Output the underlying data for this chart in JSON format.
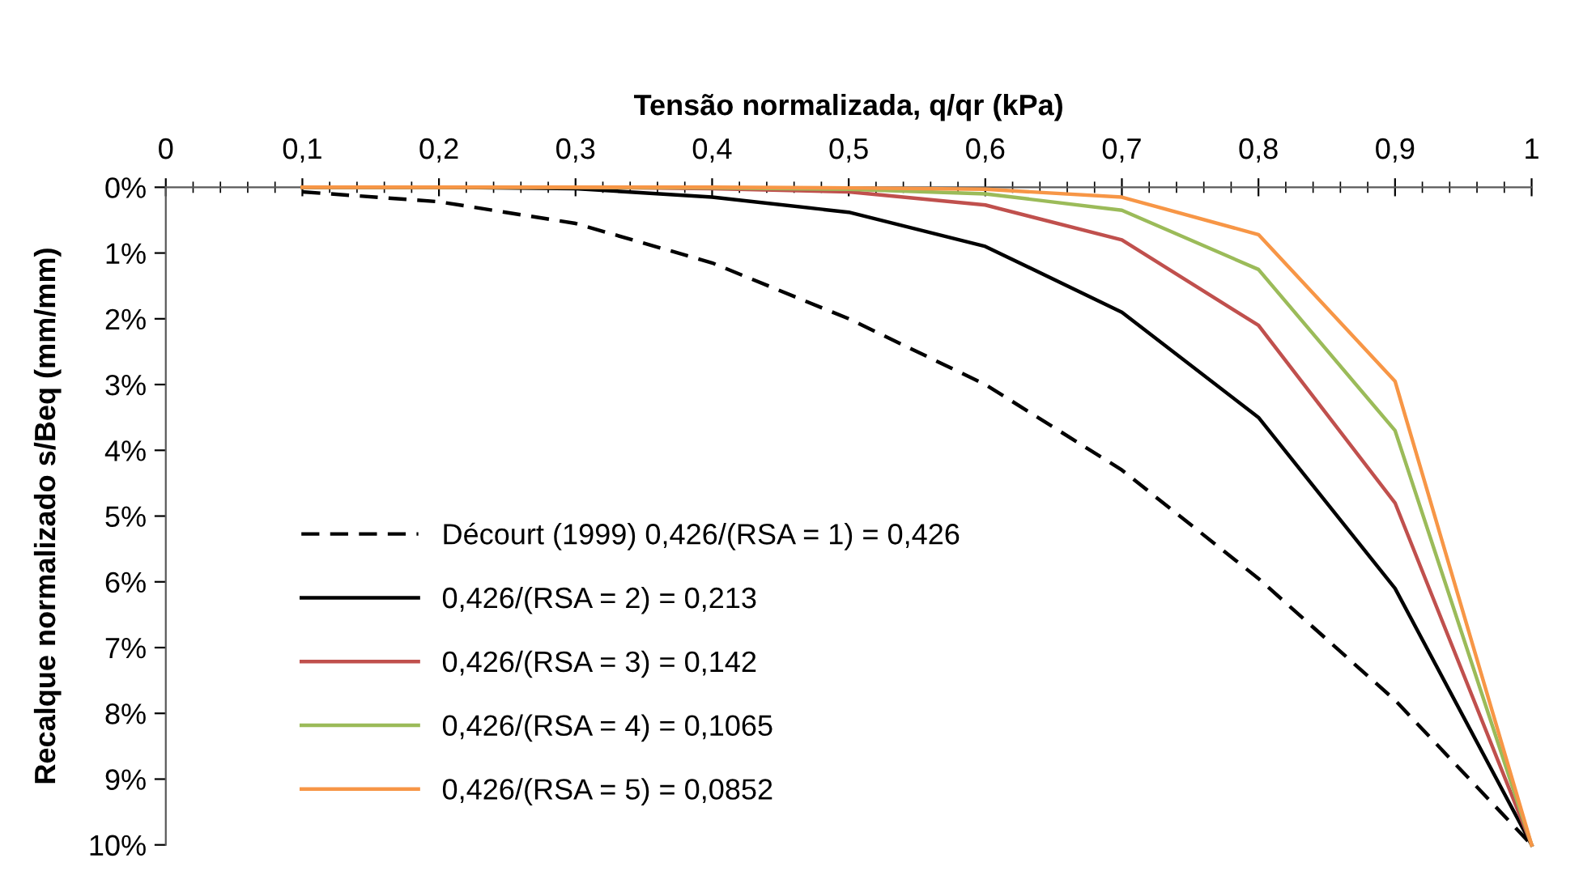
{
  "chart_data": {
    "type": "line",
    "xlabel": "Tensão normalizada, q/qr (kPa)",
    "ylabel": "Recalque normalizado s/Beq (mm/mm)",
    "x": [
      0.1,
      0.2,
      0.3,
      0.4,
      0.5,
      0.6,
      0.7,
      0.8,
      0.9,
      1.0
    ],
    "series": [
      {
        "name": "Décourt (1999) 0,426/(RSA = 1) = 0,426",
        "color": "#000000",
        "line_style": "dashed",
        "values": [
          0.07,
          0.22,
          0.55,
          1.15,
          2.0,
          3.0,
          4.3,
          5.95,
          7.8,
          10
        ]
      },
      {
        "name": "0,426/(RSA = 2) = 0,213",
        "color": "#000000",
        "line_style": "solid",
        "values": [
          0,
          0,
          0.02,
          0.15,
          0.38,
          0.9,
          1.9,
          3.5,
          6.1,
          10
        ]
      },
      {
        "name": "0,426/(RSA = 3) = 0,142",
        "color": "#c0504d",
        "line_style": "solid",
        "values": [
          0,
          0,
          0,
          0.02,
          0.07,
          0.27,
          0.8,
          2.1,
          4.8,
          10
        ]
      },
      {
        "name": "0,426/(RSA = 4) = 0,1065",
        "color": "#9bbb59",
        "line_style": "solid",
        "values": [
          0,
          0,
          0,
          0.01,
          0.03,
          0.1,
          0.35,
          1.25,
          3.7,
          10
        ]
      },
      {
        "name": "0,426/(RSA = 5) = 0,0852",
        "color": "#f79646",
        "line_style": "solid",
        "values": [
          0,
          0,
          0,
          0,
          0.01,
          0.03,
          0.15,
          0.72,
          2.95,
          10
        ]
      }
    ],
    "xlim": [
      0,
      1
    ],
    "ylim": [
      10,
      0
    ],
    "xticks": [
      {
        "value": 0,
        "label": "0"
      },
      {
        "value": 0.1,
        "label": "0,1"
      },
      {
        "value": 0.2,
        "label": "0,2"
      },
      {
        "value": 0.3,
        "label": "0,3"
      },
      {
        "value": 0.4,
        "label": "0,4"
      },
      {
        "value": 0.5,
        "label": "0,5"
      },
      {
        "value": 0.6,
        "label": "0,6"
      },
      {
        "value": 0.7,
        "label": "0,7"
      },
      {
        "value": 0.8,
        "label": "0,8"
      },
      {
        "value": 0.9,
        "label": "0,9"
      },
      {
        "value": 1,
        "label": "1"
      }
    ],
    "yticks": [
      {
        "value": 0,
        "label": "0%"
      },
      {
        "value": 1,
        "label": "1%"
      },
      {
        "value": 2,
        "label": "2%"
      },
      {
        "value": 3,
        "label": "3%"
      },
      {
        "value": 4,
        "label": "4%"
      },
      {
        "value": 5,
        "label": "5%"
      },
      {
        "value": 6,
        "label": "6%"
      },
      {
        "value": 7,
        "label": "7%"
      },
      {
        "value": 8,
        "label": "8%"
      },
      {
        "value": 9,
        "label": "9%"
      },
      {
        "value": 10,
        "label": "10%"
      }
    ],
    "grid": false,
    "legend": "bottom left",
    "marker": "none"
  }
}
